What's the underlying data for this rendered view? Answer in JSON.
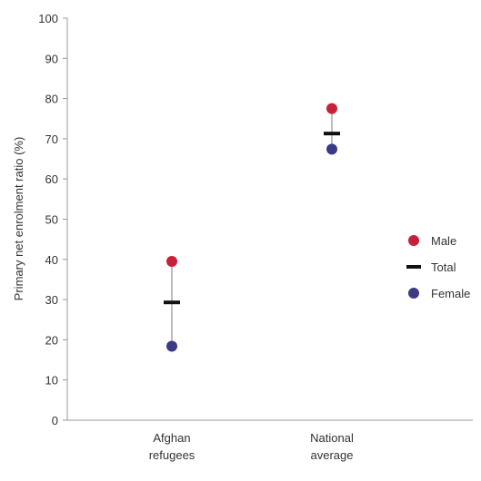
{
  "chart_data": {
    "type": "scatter",
    "title": "",
    "xlabel": "",
    "ylabel": "Primary net enrolment ratio (%)",
    "ylim": [
      0,
      100
    ],
    "yticks": [
      0,
      10,
      20,
      30,
      40,
      50,
      60,
      70,
      80,
      90,
      100
    ],
    "categories": [
      {
        "lines": [
          "Afghan",
          "refugees"
        ]
      },
      {
        "lines": [
          "National",
          "average"
        ]
      }
    ],
    "series": [
      {
        "name": "Male",
        "marker": "dot",
        "color": "#c8203a",
        "values": [
          39.5,
          77.5
        ]
      },
      {
        "name": "Total",
        "marker": "dash",
        "color": "#111111",
        "values": [
          29.3,
          71.3
        ]
      },
      {
        "name": "Female",
        "marker": "dot",
        "color": "#3d3a85",
        "values": [
          18.4,
          67.4
        ]
      }
    ],
    "range_line_color": "#bdbdbd",
    "axis_color": "#999999",
    "legend_position": "right",
    "grid": false
  }
}
